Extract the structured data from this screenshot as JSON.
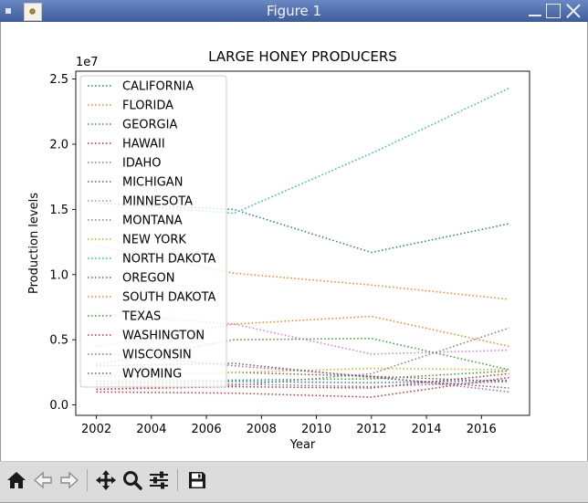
{
  "window": {
    "title": "Figure 1"
  },
  "toolbar": {
    "buttons": [
      {
        "name": "home-button",
        "icon": "home-icon"
      },
      {
        "name": "back-button",
        "icon": "arrow-left-icon"
      },
      {
        "name": "forward-button",
        "icon": "arrow-right-icon"
      },
      {
        "name": "pan-button",
        "icon": "move-icon"
      },
      {
        "name": "zoom-button",
        "icon": "magnifier-icon"
      },
      {
        "name": "configure-subplots-button",
        "icon": "sliders-icon"
      },
      {
        "name": "save-button",
        "icon": "floppy-disk-icon"
      }
    ]
  },
  "chart_data": {
    "type": "line",
    "title": "LARGE HONEY PRODUCERS",
    "xlabel": "Year",
    "ylabel": "Production levels",
    "y_offset_text": "1e7",
    "xlim": [
      2001.25,
      2017.75
    ],
    "ylim": [
      -0.08,
      2.56
    ],
    "y_unit_multiplier": 10000000,
    "x_ticks": [
      2002,
      2004,
      2006,
      2008,
      2010,
      2012,
      2014,
      2016
    ],
    "y_ticks": [
      0.0,
      0.5,
      1.0,
      1.5,
      2.0,
      2.5
    ],
    "y_tick_labels": [
      "0.0",
      "0.5",
      "1.0",
      "1.5",
      "2.0",
      "2.5"
    ],
    "grid": false,
    "legend_position": "upper-left",
    "line_style": "dotted",
    "x": [
      2002,
      2007,
      2012,
      2017
    ],
    "series": [
      {
        "name": "CALIFORNIA",
        "color": "#1f77b4",
        "values": [
          1.55,
          1.5,
          1.17,
          1.39
        ]
      },
      {
        "name": "FLORIDA",
        "color": "#ff7f0e",
        "values": [
          1.22,
          1.01,
          0.92,
          0.81
        ]
      },
      {
        "name": "GEORGIA",
        "color": "#2ca02c",
        "values": [
          0.18,
          0.19,
          0.2,
          0.26
        ]
      },
      {
        "name": "HAWAII",
        "color": "#d62728",
        "values": [
          0.1,
          0.09,
          0.06,
          0.21
        ]
      },
      {
        "name": "IDAHO",
        "color": "#9467bd",
        "values": [
          0.14,
          0.16,
          0.14,
          0.18
        ]
      },
      {
        "name": "MICHIGAN",
        "color": "#8c564b",
        "values": [
          0.22,
          0.25,
          0.22,
          0.18
        ]
      },
      {
        "name": "MINNESOTA",
        "color": "#e377c2",
        "values": [
          0.7,
          0.62,
          0.39,
          0.42
        ]
      },
      {
        "name": "MONTANA",
        "color": "#7f7f7f",
        "values": [
          0.12,
          0.15,
          0.24,
          0.59
        ]
      },
      {
        "name": "NEW YORK",
        "color": "#bcbd22",
        "values": [
          0.22,
          0.25,
          0.28,
          0.27
        ]
      },
      {
        "name": "NORTH DAKOTA",
        "color": "#17becf",
        "values": [
          1.55,
          1.47,
          1.93,
          2.43
        ]
      },
      {
        "name": "OREGON",
        "color": "#1f77b4",
        "values": [
          0.16,
          0.18,
          0.17,
          0.19
        ]
      },
      {
        "name": "SOUTH DAKOTA",
        "color": "#ff7f0e",
        "values": [
          0.45,
          0.62,
          0.68,
          0.45
        ]
      },
      {
        "name": "TEXAS",
        "color": "#2ca02c",
        "values": [
          0.31,
          0.5,
          0.51,
          0.27
        ]
      },
      {
        "name": "WASHINGTON",
        "color": "#d62728",
        "values": [
          0.12,
          0.14,
          0.13,
          0.24
        ]
      },
      {
        "name": "WISCONSIN",
        "color": "#9467bd",
        "values": [
          0.4,
          0.3,
          0.22,
          0.1
        ]
      },
      {
        "name": "WYOMING",
        "color": "#8c564b",
        "values": [
          0.3,
          0.32,
          0.21,
          0.13
        ]
      }
    ]
  }
}
